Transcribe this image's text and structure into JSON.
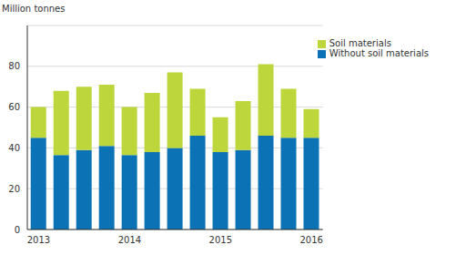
{
  "chart_data": {
    "type": "bar",
    "y_label": "Million tonnes",
    "categories": [
      "2013",
      null,
      null,
      null,
      "2014",
      null,
      null,
      null,
      "2015",
      null,
      null,
      null,
      "2016"
    ],
    "series": [
      {
        "name": "Without soil materials",
        "color": "#0b72b5",
        "values": [
          45,
          36.5,
          39,
          41,
          36.5,
          38,
          40,
          46,
          38,
          39,
          46,
          45,
          45
        ]
      },
      {
        "name": "Soil materials",
        "color": "#bcd63c",
        "values": [
          15,
          31.5,
          31,
          30,
          23.5,
          29,
          37,
          23,
          17,
          24,
          35,
          24,
          14
        ]
      }
    ],
    "ylim": [
      0,
      100
    ],
    "yticks": [
      0,
      20,
      40,
      60,
      80
    ],
    "grid": true,
    "stacked": true,
    "legend": "upper right"
  }
}
